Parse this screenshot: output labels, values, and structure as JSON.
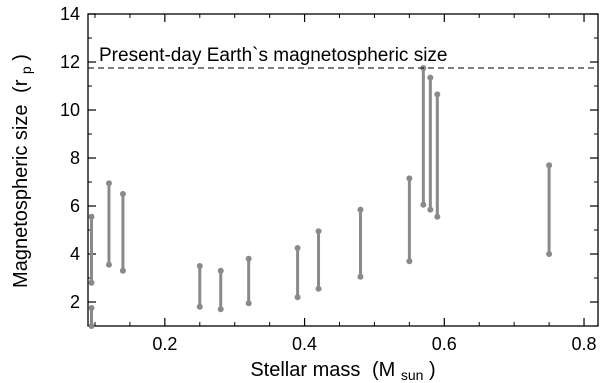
{
  "chart_data": {
    "type": "range",
    "xlabel": "Stellar mass",
    "xlabel_unit": "(M",
    "xlabel_unit_sub": "sun",
    "xlabel_unit_close": ")",
    "ylabel": "Magnetospheric size",
    "ylabel_unit": "(r",
    "ylabel_unit_sub": "p",
    "ylabel_unit_close": ")",
    "xlim": [
      0.09,
      0.82
    ],
    "ylim": [
      1.0,
      14.0
    ],
    "xticks": [
      0.2,
      0.4,
      0.6,
      0.8
    ],
    "xtick_labels": [
      "0.2",
      "0.4",
      "0.6",
      "0.8"
    ],
    "yticks": [
      2,
      4,
      6,
      8,
      10,
      12,
      14
    ],
    "ytick_labels": [
      "2",
      "4",
      "6",
      "8",
      "10",
      "12",
      "14"
    ],
    "reference_line": {
      "y": 11.75,
      "style": "dashed",
      "label": "Present-day Earth`s magnetospheric size"
    },
    "bar_color": "#8a8a8a",
    "ranges": [
      {
        "x": 0.095,
        "low": 2.8,
        "high": 5.55
      },
      {
        "x": 0.095,
        "low": 1.0,
        "high": 1.75
      },
      {
        "x": 0.12,
        "low": 3.55,
        "high": 6.95
      },
      {
        "x": 0.14,
        "low": 3.3,
        "high": 6.5
      },
      {
        "x": 0.25,
        "low": 1.8,
        "high": 3.5
      },
      {
        "x": 0.28,
        "low": 1.7,
        "high": 3.3
      },
      {
        "x": 0.32,
        "low": 1.95,
        "high": 3.8
      },
      {
        "x": 0.39,
        "low": 2.2,
        "high": 4.25
      },
      {
        "x": 0.42,
        "low": 2.55,
        "high": 4.95
      },
      {
        "x": 0.48,
        "low": 3.05,
        "high": 5.85
      },
      {
        "x": 0.55,
        "low": 3.7,
        "high": 7.15
      },
      {
        "x": 0.57,
        "low": 6.05,
        "high": 11.75
      },
      {
        "x": 0.58,
        "low": 5.85,
        "high": 11.35
      },
      {
        "x": 0.59,
        "low": 5.55,
        "high": 10.65
      },
      {
        "x": 0.75,
        "low": 4.0,
        "high": 7.7
      }
    ]
  }
}
